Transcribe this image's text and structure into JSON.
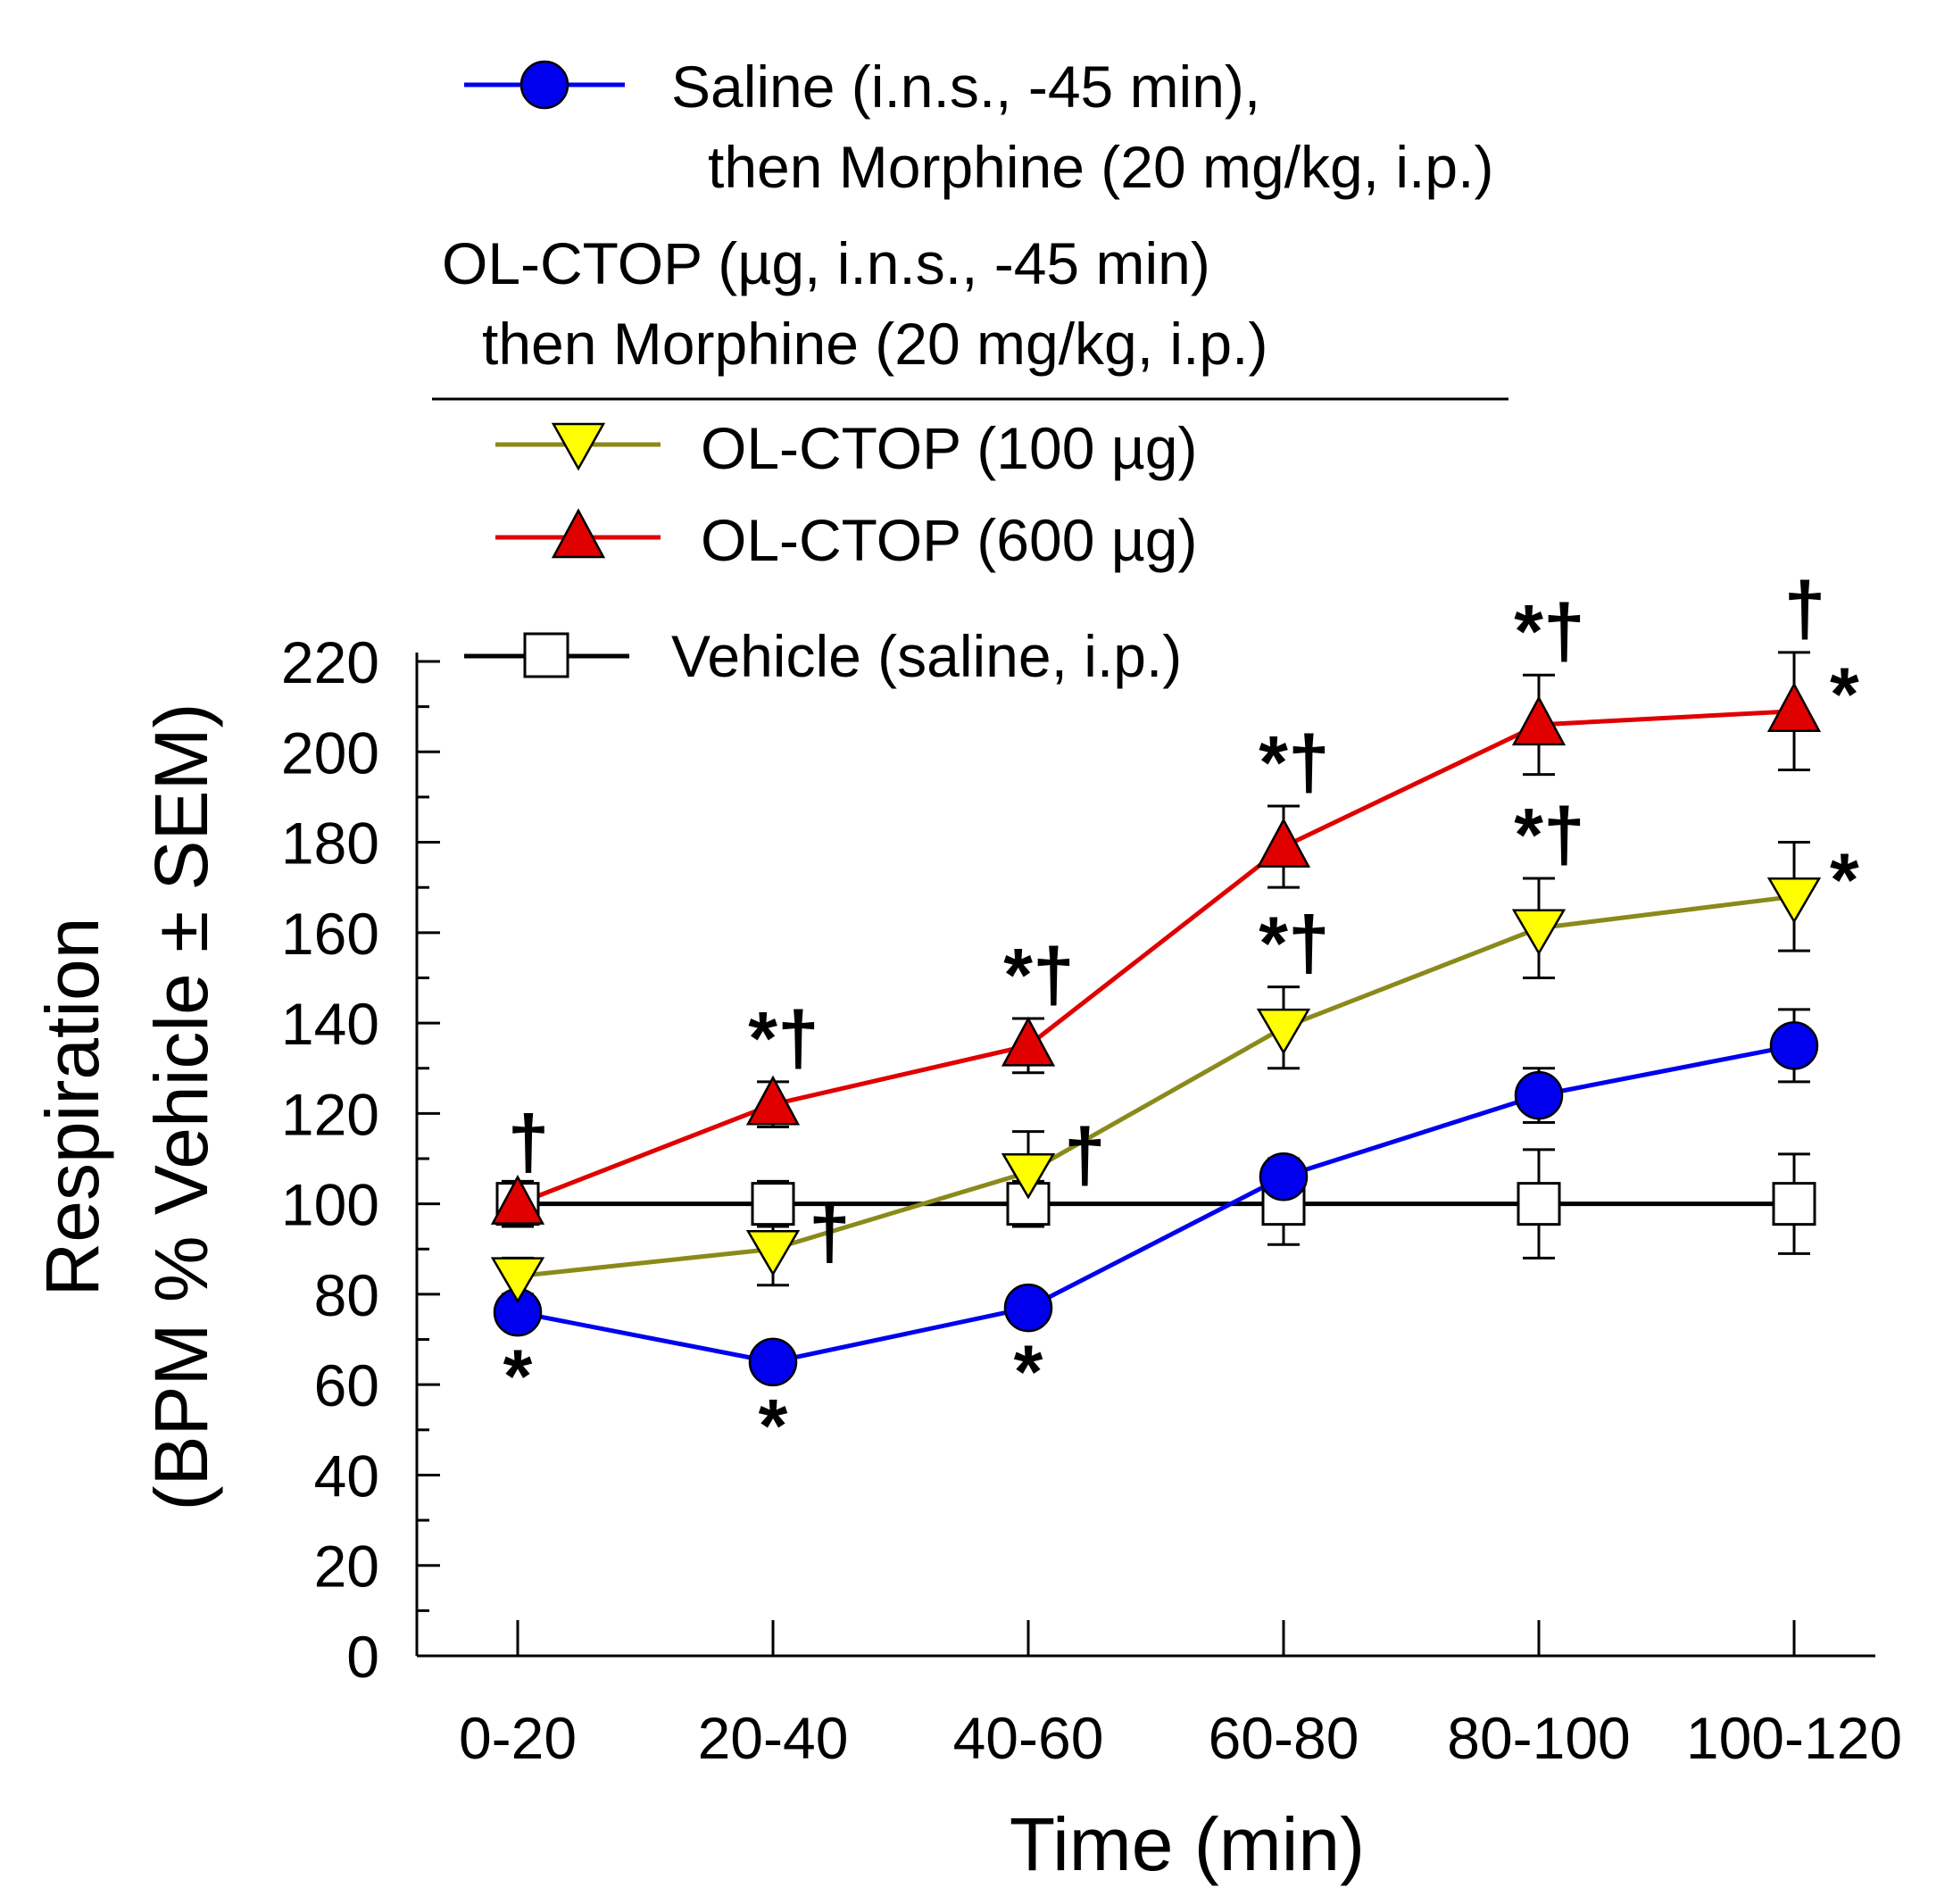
{
  "chart_data": {
    "type": "line",
    "categories": [
      "0-20",
      "20-40",
      "40-60",
      "60-80",
      "80-100",
      "100-120"
    ],
    "xlabel": "Time (min)",
    "ylabel_line1": "Respiration",
    "ylabel_line2": "(BPM % Vehicle ± SEM)",
    "ylim": [
      0,
      220
    ],
    "yticks": [
      0,
      20,
      40,
      60,
      80,
      100,
      120,
      140,
      160,
      180,
      200,
      220
    ],
    "series": [
      {
        "name": "Vehicle",
        "marker": "square",
        "line_color": "#000000",
        "fill_color": "#ffffff",
        "values": [
          100,
          100,
          100,
          100,
          100,
          100
        ],
        "sem": [
          5,
          5,
          5,
          9,
          12,
          11
        ]
      },
      {
        "name": "Saline",
        "marker": "circle",
        "line_color": "#0000ee",
        "fill_color": "#0000ee",
        "values": [
          76,
          65,
          77,
          106,
          124,
          135
        ],
        "sem": [
          3,
          3,
          3,
          4,
          6,
          8
        ]
      },
      {
        "name": "OL-CTOP (100 µg)",
        "marker": "triangle-down",
        "line_color": "#8a8a1a",
        "fill_color": "#ffff00",
        "values": [
          84,
          90,
          107,
          139,
          161,
          168
        ],
        "sem": [
          4,
          8,
          9,
          9,
          11,
          12
        ]
      },
      {
        "name": "OL-CTOP (600 µg)",
        "marker": "triangle-up",
        "line_color": "#e00000",
        "fill_color": "#e00000",
        "values": [
          100,
          122,
          135,
          179,
          206,
          209
        ],
        "sem": [
          4,
          5,
          6,
          9,
          11,
          13
        ]
      }
    ],
    "annotations": [
      {
        "series": 1,
        "index": 0,
        "text": "*",
        "pos": "below"
      },
      {
        "series": 1,
        "index": 1,
        "text": "*",
        "pos": "below"
      },
      {
        "series": 1,
        "index": 2,
        "text": "*",
        "pos": "below"
      },
      {
        "series": 3,
        "index": 0,
        "text": "†",
        "pos": "above"
      },
      {
        "series": 3,
        "index": 1,
        "text": "*†",
        "pos": "above"
      },
      {
        "series": 3,
        "index": 2,
        "text": "*†",
        "pos": "above"
      },
      {
        "series": 3,
        "index": 3,
        "text": "*†",
        "pos": "above"
      },
      {
        "series": 3,
        "index": 4,
        "text": "*†",
        "pos": "above"
      },
      {
        "series": 3,
        "index": 5,
        "text": "†",
        "pos": "above"
      },
      {
        "series": 3,
        "index": 5,
        "text": "*",
        "pos": "right"
      },
      {
        "series": 2,
        "index": 1,
        "text": "†",
        "pos": "right"
      },
      {
        "series": 2,
        "index": 2,
        "text": "†",
        "pos": "right"
      },
      {
        "series": 2,
        "index": 3,
        "text": "*†",
        "pos": "above"
      },
      {
        "series": 2,
        "index": 4,
        "text": "*†",
        "pos": "above"
      },
      {
        "series": 2,
        "index": 5,
        "text": "*",
        "pos": "right"
      }
    ],
    "legend": {
      "saline_line1": "Saline (i.n.s., -45 min),",
      "saline_line2": "then Morphine (20 mg/kg, i.p.)",
      "group_header_line1": "OL-CTOP (µg, i.n.s., -45 min)",
      "group_header_line2": "then Morphine (20 mg/kg, i.p.)",
      "olctop100": "OL-CTOP (100 µg)",
      "olctop600": "OL-CTOP (600 µg)",
      "vehicle": "Vehicle (saline, i.p.)"
    }
  }
}
